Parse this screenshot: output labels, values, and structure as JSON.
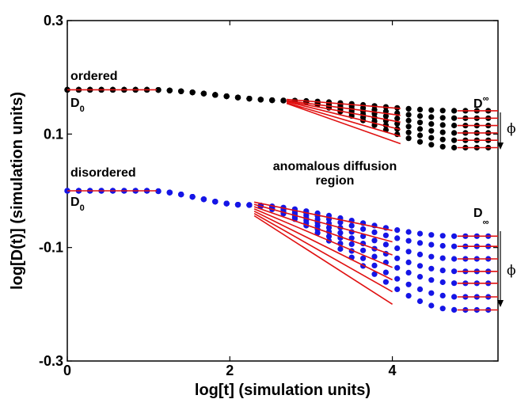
{
  "chart_data": {
    "type": "scatter",
    "title": "",
    "xlabel": "log[t] (simulation units)",
    "ylabel": "log[D(t)] (simulation units)",
    "xlim": [
      0,
      5.3
    ],
    "ylim": [
      -0.3,
      0.3
    ],
    "xticks": [
      {
        "value": 0,
        "label": "0"
      },
      {
        "value": 2,
        "label": "2"
      },
      {
        "value": 4,
        "label": "4"
      }
    ],
    "yticks": [
      {
        "value": 0.3,
        "label": "0.3"
      },
      {
        "value": 0.1,
        "label": "0.1"
      },
      {
        "value": -0.1,
        "label": "-0.1"
      },
      {
        "value": -0.3,
        "label": "-0.3"
      }
    ],
    "grid": false,
    "groups": [
      {
        "name": "ordered",
        "color": "#000000",
        "d0": 0.178,
        "break_start": 1.0,
        "break_end": 2.7,
        "mid_value": 0.159,
        "plateau_start": 4.8,
        "d_inf": [
          0.141,
          0.128,
          0.115,
          0.102,
          0.089,
          0.076
        ],
        "fit_segments": [
          {
            "x": [
              0.0,
              1.1
            ],
            "y": [
              0.178,
              0.178
            ]
          },
          {
            "x": [
              2.7,
              4.1
            ],
            "y": [
              0.161,
              0.145
            ]
          },
          {
            "x": [
              2.7,
              4.1
            ],
            "y": [
              0.159,
              0.133
            ]
          },
          {
            "x": [
              2.7,
              4.1
            ],
            "y": [
              0.158,
              0.121
            ]
          },
          {
            "x": [
              2.7,
              4.1
            ],
            "y": [
              0.157,
              0.108
            ]
          },
          {
            "x": [
              2.7,
              4.1
            ],
            "y": [
              0.155,
              0.096
            ]
          },
          {
            "x": [
              2.7,
              4.1
            ],
            "y": [
              0.154,
              0.083
            ]
          },
          {
            "x": [
              4.8,
              5.3
            ],
            "y": [
              0.141,
              0.141
            ]
          },
          {
            "x": [
              4.8,
              5.3
            ],
            "y": [
              0.128,
              0.128
            ]
          },
          {
            "x": [
              4.8,
              5.3
            ],
            "y": [
              0.115,
              0.115
            ]
          },
          {
            "x": [
              4.8,
              5.3
            ],
            "y": [
              0.102,
              0.102
            ]
          },
          {
            "x": [
              4.8,
              5.3
            ],
            "y": [
              0.089,
              0.089
            ]
          },
          {
            "x": [
              4.8,
              5.3
            ],
            "y": [
              0.076,
              0.076
            ]
          }
        ]
      },
      {
        "name": "disordered",
        "color": "#1515e6",
        "d0": 0.0,
        "break_start": 1.0,
        "break_end": 2.2,
        "mid_value": -0.025,
        "plateau_start": 4.8,
        "d_inf": [
          -0.08,
          -0.098,
          -0.12,
          -0.142,
          -0.163,
          -0.187,
          -0.21
        ],
        "fit_segments": [
          {
            "x": [
              0.0,
              1.1
            ],
            "y": [
              0.0,
              0.0
            ]
          },
          {
            "x": [
              2.3,
              4.0
            ],
            "y": [
              -0.02,
              -0.07
            ]
          },
          {
            "x": [
              2.3,
              4.0
            ],
            "y": [
              -0.024,
              -0.09
            ]
          },
          {
            "x": [
              2.3,
              4.0
            ],
            "y": [
              -0.028,
              -0.113
            ]
          },
          {
            "x": [
              2.3,
              4.0
            ],
            "y": [
              -0.032,
              -0.135
            ]
          },
          {
            "x": [
              2.3,
              4.0
            ],
            "y": [
              -0.036,
              -0.157
            ]
          },
          {
            "x": [
              2.3,
              4.0
            ],
            "y": [
              -0.04,
              -0.178
            ]
          },
          {
            "x": [
              2.3,
              4.0
            ],
            "y": [
              -0.044,
              -0.2
            ]
          },
          {
            "x": [
              4.8,
              5.3
            ],
            "y": [
              -0.08,
              -0.08
            ]
          },
          {
            "x": [
              4.8,
              5.3
            ],
            "y": [
              -0.098,
              -0.098
            ]
          },
          {
            "x": [
              4.8,
              5.3
            ],
            "y": [
              -0.12,
              -0.12
            ]
          },
          {
            "x": [
              4.8,
              5.3
            ],
            "y": [
              -0.142,
              -0.142
            ]
          },
          {
            "x": [
              4.8,
              5.3
            ],
            "y": [
              -0.163,
              -0.163
            ]
          },
          {
            "x": [
              4.8,
              5.3
            ],
            "y": [
              -0.187,
              -0.187
            ]
          },
          {
            "x": [
              4.8,
              5.3
            ],
            "y": [
              -0.21,
              -0.21
            ]
          }
        ]
      }
    ],
    "annotations": {
      "ordered_label": "ordered",
      "disordered_label": "disordered",
      "d0_main": "D",
      "d0_sub": "0",
      "dinf_main": "D",
      "dinf_sub": "∞",
      "region_line1": "anomalous diffusion",
      "region_line2": "region",
      "phi": "ϕ"
    },
    "fit_line_color": "#e01010"
  }
}
